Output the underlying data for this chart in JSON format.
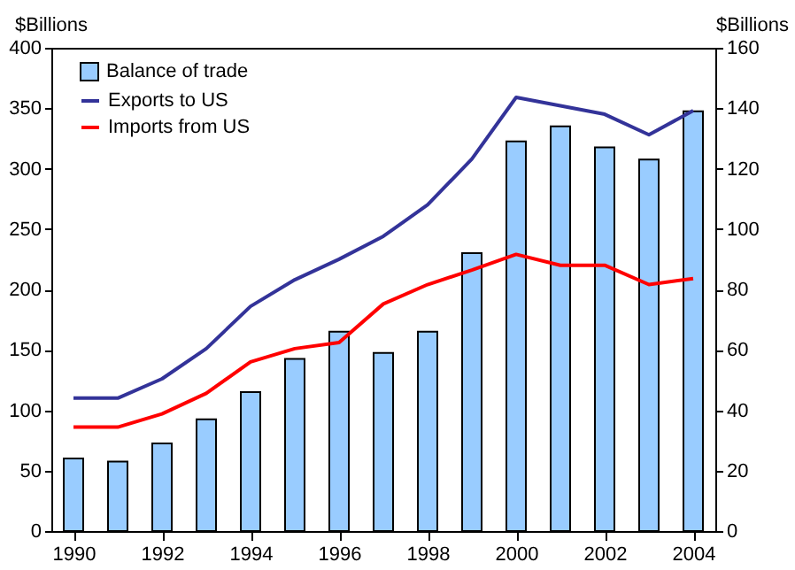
{
  "chart_data": {
    "type": "bar",
    "ylabel": "$Billions",
    "y2label": "$Billions",
    "x": [
      1990,
      1991,
      1992,
      1993,
      1994,
      1995,
      1996,
      1997,
      1998,
      1999,
      2000,
      2001,
      2002,
      2003,
      2004
    ],
    "xlim": [
      1989.5,
      2004.5
    ],
    "xticks": [
      1990,
      1992,
      1994,
      1996,
      1998,
      2000,
      2002,
      2004
    ],
    "ylim": [
      0,
      400
    ],
    "yticks": [
      0,
      50,
      100,
      150,
      200,
      250,
      300,
      350,
      400
    ],
    "y2lim": [
      0,
      160
    ],
    "y2ticks": [
      0,
      20,
      40,
      60,
      80,
      100,
      120,
      140,
      160
    ],
    "legend": "top left",
    "grid": false,
    "series": [
      {
        "name": "Balance of trade",
        "axis": "y2",
        "color": "#99ccff",
        "values": [
          24,
          23,
          29,
          37,
          46,
          57,
          66,
          59,
          66,
          92,
          129,
          134,
          127,
          123,
          139
        ]
      },
      {
        "name": "Exports to US",
        "type": "line",
        "color": "#333399",
        "values": [
          110,
          110,
          126,
          151,
          186,
          208,
          225,
          244,
          270,
          308,
          359,
          352,
          345,
          328,
          348
        ]
      },
      {
        "name": "Imports from US",
        "type": "line",
        "color": "#ff0000",
        "values": [
          86,
          86,
          97,
          114,
          140,
          151,
          156,
          188,
          204,
          216,
          229,
          220,
          220,
          204,
          209
        ]
      }
    ]
  }
}
